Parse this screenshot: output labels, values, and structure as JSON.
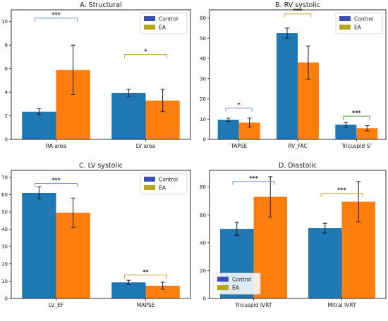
{
  "colors": {
    "control": "#1f77b4",
    "ea": "#ff7f0e",
    "control_legend": "#3a4eb0",
    "ea_legend": "#b5a51f",
    "bracket_control": "#6d8cc6",
    "bracket_ea": "#c9a62a",
    "bracket_green": "#5a9a3a"
  },
  "chart_data": [
    {
      "id": "A",
      "type": "bar",
      "title": "A. Structural",
      "categories": [
        "RA area",
        "LV area"
      ],
      "ylim": [
        0,
        11
      ],
      "yticks": [
        0,
        2,
        4,
        6,
        8,
        10
      ],
      "grid": false,
      "legend": {
        "placement": "top-right",
        "entries": [
          "Control",
          "EA"
        ]
      },
      "series": [
        {
          "name": "Control",
          "values": [
            2.35,
            3.95
          ],
          "errors": [
            0.25,
            0.3
          ]
        },
        {
          "name": "EA",
          "values": [
            5.9,
            3.3
          ],
          "errors": [
            2.1,
            0.95
          ]
        }
      ],
      "significance": [
        {
          "category": 0,
          "label": "***",
          "bracket": "control",
          "y": 10.3
        },
        {
          "category": 1,
          "label": "*",
          "bracket": "ea",
          "y": 7.2
        }
      ]
    },
    {
      "id": "B",
      "type": "bar",
      "title": "B. RV systolic",
      "categories": [
        "TAPSE",
        "RV_FAC",
        "Tricuspid S'"
      ],
      "ylim": [
        0,
        64
      ],
      "yticks": [
        0,
        10,
        20,
        30,
        40,
        50,
        60
      ],
      "grid": false,
      "legend": {
        "placement": "top-right",
        "entries": [
          "Control",
          "EA"
        ]
      },
      "series": [
        {
          "name": "Control",
          "values": [
            9.7,
            52.5,
            7.3
          ],
          "errors": [
            0.8,
            2.5,
            1.2
          ]
        },
        {
          "name": "EA",
          "values": [
            8.3,
            38,
            5.5
          ],
          "errors": [
            2.2,
            8.2,
            1.3
          ]
        }
      ],
      "significance": [
        {
          "category": 0,
          "label": "*",
          "bracket": "control",
          "y": 15.5
        },
        {
          "category": 1,
          "label": "***",
          "bracket": "ea",
          "y": 62
        },
        {
          "category": 2,
          "label": "***",
          "bracket": "green",
          "y": 11.5
        }
      ]
    },
    {
      "id": "C",
      "type": "bar",
      "title": "C. LV systolic",
      "categories": [
        "LV_EF",
        "MAPSE"
      ],
      "ylim": [
        0,
        74
      ],
      "yticks": [
        0,
        10,
        20,
        30,
        40,
        50,
        60,
        70
      ],
      "grid": false,
      "legend": {
        "placement": "top-right",
        "entries": [
          "Control",
          "EA"
        ]
      },
      "series": [
        {
          "name": "Control",
          "values": [
            61,
            9.3
          ],
          "errors": [
            3.5,
            1.2
          ]
        },
        {
          "name": "EA",
          "values": [
            49.5,
            7.4
          ],
          "errors": [
            8.5,
            2
          ]
        }
      ],
      "significance": [
        {
          "category": 0,
          "label": "***",
          "bracket": "control",
          "y": 66.5
        },
        {
          "category": 1,
          "label": "**",
          "bracket": "ea",
          "y": 13.5
        }
      ]
    },
    {
      "id": "D",
      "type": "bar",
      "title": "D. Diastolic",
      "categories": [
        "Tricuspid IVRT",
        "Mitral IVRT"
      ],
      "ylim": [
        0,
        92
      ],
      "yticks": [
        0,
        20,
        40,
        60,
        80
      ],
      "grid": false,
      "legend": {
        "placement": "bottom-left",
        "entries": [
          "Control",
          "EA"
        ]
      },
      "series": [
        {
          "name": "Control",
          "values": [
            50,
            50.5
          ],
          "errors": [
            4.8,
            3.5
          ]
        },
        {
          "name": "EA",
          "values": [
            73,
            69.5
          ],
          "errors": [
            14.5,
            14.5
          ]
        }
      ],
      "significance": [
        {
          "category": 0,
          "label": "***",
          "bracket": "control",
          "y": 84
        },
        {
          "category": 1,
          "label": "***",
          "bracket": "ea",
          "y": 75.5
        }
      ]
    }
  ]
}
